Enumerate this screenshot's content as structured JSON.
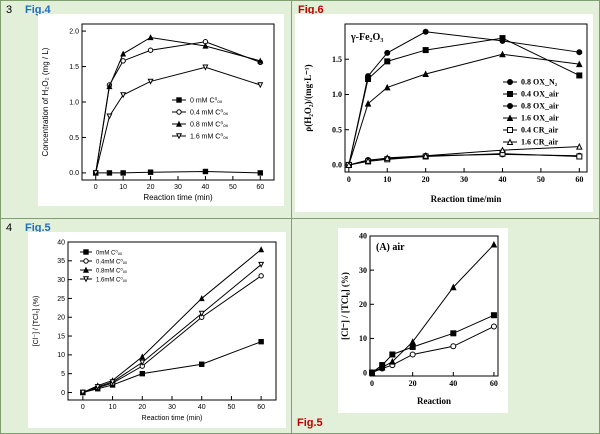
{
  "rows": [
    "3",
    "4"
  ],
  "figs": {
    "fig4": "Fig.4",
    "fig6": "Fig.6",
    "fig5a": "Fig.5",
    "fig5b": "Fig.5"
  },
  "chart_data": [
    {
      "type": "line",
      "id": "fig4",
      "xlabel": "Reaction time (min)",
      "ylabel": "Concentration of H₂O₂ (mg / L)",
      "xlim": [
        -5,
        65
      ],
      "ylim": [
        -0.1,
        2.1
      ],
      "xticks": [
        0,
        10,
        20,
        30,
        40,
        50,
        60
      ],
      "yticks": [
        0.0,
        0.5,
        1.0,
        1.5,
        2.0
      ],
      "ytick_labels": [
        "0.0",
        "0.5",
        "1.0",
        "1.5",
        "2.0"
      ],
      "legend_position": "center-right",
      "x": [
        0,
        5,
        10,
        20,
        40,
        60
      ],
      "series": [
        {
          "name": "0 mM C⁰ₒₓ",
          "marker": "square",
          "values": [
            0,
            0,
            0,
            0.01,
            0.02,
            0
          ]
        },
        {
          "name": "0.4 mM C⁰ₒₓ",
          "marker": "circle-open",
          "values": [
            0,
            1.24,
            1.58,
            1.73,
            1.85,
            1.56
          ]
        },
        {
          "name": "0.8 mM C⁰ₒₓ",
          "marker": "triangle",
          "values": [
            0,
            1.22,
            1.68,
            1.91,
            1.79,
            1.58
          ]
        },
        {
          "name": "1.6 mM C⁰ₒₓ",
          "marker": "triangle-down-open",
          "values": [
            0,
            0.8,
            1.1,
            1.29,
            1.49,
            1.24
          ]
        }
      ]
    },
    {
      "type": "line",
      "id": "fig6",
      "title": "γ-Fe₂O₃",
      "xlabel": "Reaction time/min",
      "ylabel": "ρ(H₂O₂)/(mg·L⁻¹)",
      "xlim": [
        -1,
        62
      ],
      "ylim": [
        -0.1,
        2.0
      ],
      "xticks": [
        0,
        10,
        20,
        30,
        40,
        50,
        60
      ],
      "yticks": [
        0.0,
        0.5,
        1.0,
        1.5
      ],
      "ytick_labels": [
        "0.0",
        "0.5",
        "1.0",
        "1.5"
      ],
      "legend_position": "right",
      "x": [
        0,
        5,
        10,
        20,
        40,
        60
      ],
      "series": [
        {
          "name": "0.8 OX_N₂",
          "marker": "circle",
          "values": [
            0,
            0.07,
            0.09,
            0.13,
            0.15,
            0.13
          ]
        },
        {
          "name": "0.4 OX_air",
          "marker": "square",
          "values": [
            0,
            1.22,
            1.47,
            1.63,
            1.8,
            1.27
          ]
        },
        {
          "name": "0.8 OX_air",
          "marker": "circle",
          "values": [
            0,
            1.26,
            1.59,
            1.89,
            1.76,
            1.6
          ]
        },
        {
          "name": "1.6 OX_air",
          "marker": "triangle",
          "values": [
            0,
            0.87,
            1.1,
            1.29,
            1.57,
            1.43
          ]
        },
        {
          "name": "0.4 CR_air",
          "marker": "square-open",
          "values": [
            0,
            0.05,
            0.08,
            0.12,
            0.16,
            0.12
          ]
        },
        {
          "name": "1.6 CR_air",
          "marker": "triangle-open",
          "values": [
            0,
            0.06,
            0.1,
            0.13,
            0.21,
            0.26
          ]
        }
      ]
    },
    {
      "type": "line",
      "id": "fig5a",
      "xlabel": "Reaction time (min)",
      "ylabel": "[Cl⁻] / [TCl₀] (%)",
      "xlim": [
        -5,
        65
      ],
      "ylim": [
        -2,
        40
      ],
      "xticks": [
        0,
        10,
        20,
        30,
        40,
        50,
        60
      ],
      "yticks": [
        0,
        5,
        10,
        15,
        20,
        25,
        30,
        35,
        40
      ],
      "legend_position": "top-left",
      "x": [
        0,
        5,
        10,
        20,
        40,
        60
      ],
      "series": [
        {
          "name": "0mM C⁰ₒₓ",
          "marker": "square",
          "values": [
            0,
            1,
            2,
            5,
            7.5,
            13.5
          ]
        },
        {
          "name": "0.4mM C⁰ₒₓ",
          "marker": "circle-open",
          "values": [
            0,
            1.3,
            2.5,
            7,
            20,
            31
          ]
        },
        {
          "name": "0.8mM C⁰ₒₓ",
          "marker": "triangle",
          "values": [
            0,
            1.8,
            3.2,
            9.5,
            25,
            38
          ]
        },
        {
          "name": "1.6mM C⁰ₒₓ",
          "marker": "triangle-down-open",
          "values": [
            0,
            1.5,
            2.8,
            8,
            21,
            34
          ]
        }
      ]
    },
    {
      "type": "line",
      "id": "fig5b",
      "title": "(A)  air",
      "xlabel": "Reaction",
      "ylabel": "[Cl⁻] / [TCl₀] (%)",
      "xlim": [
        -1,
        62
      ],
      "ylim": [
        -1,
        40
      ],
      "xticks": [
        0,
        20,
        40,
        60
      ],
      "yticks": [
        0,
        10,
        20,
        30,
        40
      ],
      "x": [
        0,
        5,
        10,
        20,
        40,
        60
      ],
      "series": [
        {
          "marker": "circle-open",
          "values": [
            0,
            1.2,
            2.2,
            5.3,
            7.7,
            13.5
          ]
        },
        {
          "marker": "square",
          "values": [
            0,
            2.2,
            5.3,
            7.5,
            11.5,
            16.8
          ]
        },
        {
          "marker": "triangle",
          "values": [
            0,
            1.5,
            3.2,
            9,
            25,
            37.5
          ]
        }
      ]
    }
  ]
}
